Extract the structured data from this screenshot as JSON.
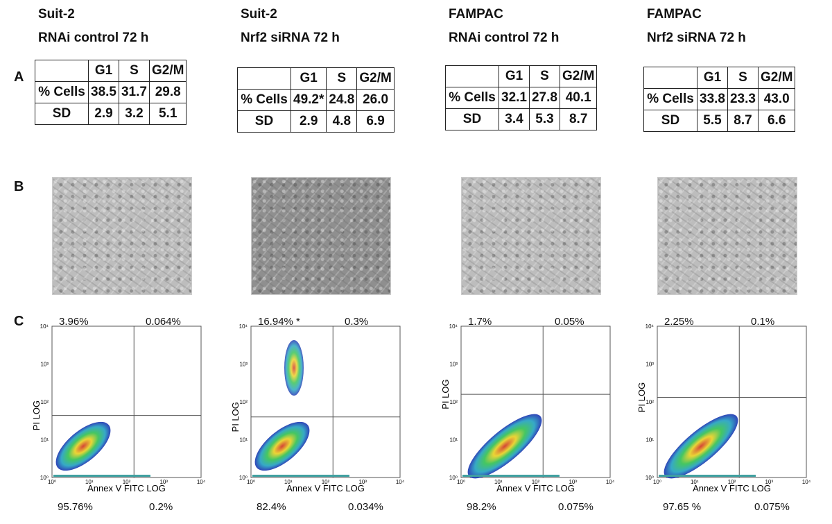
{
  "panel_labels": [
    "A",
    "B",
    "C"
  ],
  "flow_ticks": [
    "10⁰",
    "10¹",
    "10²",
    "10³",
    "10⁴"
  ],
  "columns": [
    {
      "title": [
        "Suit-2",
        "RNAi control 72 h"
      ],
      "table": {
        "header": [
          "G1",
          "S",
          "G2/M"
        ],
        "rows": [
          [
            "% Cells",
            "38.5",
            "31.7",
            "29.8"
          ],
          [
            "SD",
            "2.9",
            "3.2",
            "5.1"
          ]
        ]
      },
      "flow": {
        "upper_left": "3.96%",
        "upper_right": "0.064%",
        "lower_left": "95.76%",
        "lower_right": "0.2%",
        "y_label": "PI  LOG",
        "x_label": "Annex V FITC LOG"
      }
    },
    {
      "title": [
        "Suit-2",
        "Nrf2 siRNA 72 h"
      ],
      "table": {
        "header": [
          "G1",
          "S",
          "G2/M"
        ],
        "rows": [
          [
            "% Cells",
            "49.2*",
            "24.8",
            "26.0"
          ],
          [
            "SD",
            "2.9",
            "4.8",
            "6.9"
          ]
        ]
      },
      "flow": {
        "upper_left": "16.94% *",
        "upper_right": "0.3%",
        "lower_left": "82.4%",
        "lower_right": "0.034%",
        "y_label": "PI  LOG",
        "x_label": "Annex V FITC LOG"
      }
    },
    {
      "title": [
        "FAMPAC",
        "RNAi control 72 h"
      ],
      "table": {
        "header": [
          "G1",
          "S",
          "G2/M"
        ],
        "rows": [
          [
            "% Cells",
            "32.1",
            "27.8",
            "40.1"
          ],
          [
            "SD",
            "3.4",
            "5.3",
            "8.7"
          ]
        ]
      },
      "flow": {
        "upper_left": "1.7%",
        "upper_right": "0.05%",
        "lower_left": "98.2%",
        "lower_right": "0.075%",
        "y_label": "PI  LOG",
        "x_label": "Annex V FITC LOG"
      }
    },
    {
      "title": [
        "FAMPAC",
        "Nrf2 siRNA 72 h"
      ],
      "table": {
        "header": [
          "G1",
          "S",
          "G2/M"
        ],
        "rows": [
          [
            "% Cells",
            "33.8",
            "23.3",
            "43.0"
          ],
          [
            "SD",
            "5.5",
            "8.7",
            "6.6"
          ]
        ]
      },
      "flow": {
        "upper_left": "2.25%",
        "upper_right": "0.1%",
        "lower_left": "97.65  %",
        "lower_right": "0.075%",
        "y_label": "PI  LOG",
        "x_label": "Annex V FITC LOG"
      }
    }
  ]
}
